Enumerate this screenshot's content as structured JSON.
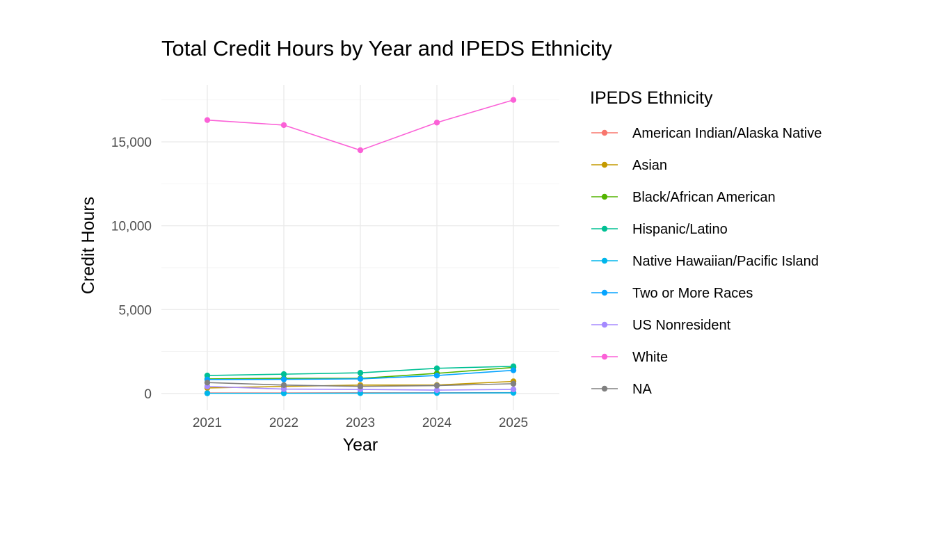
{
  "chart_data": {
    "type": "line",
    "title": "Total Credit Hours by Year and IPEDS Ethnicity",
    "xlabel": "Year",
    "ylabel": "Credit Hours",
    "x": [
      2021,
      2022,
      2023,
      2024,
      2025
    ],
    "x_tick_labels": [
      "2021",
      "2022",
      "2023",
      "2024",
      "2025"
    ],
    "y_ticks": [
      0,
      5000,
      10000,
      15000
    ],
    "y_tick_labels": [
      "0",
      "5,000",
      "10,000",
      "15,000"
    ],
    "ylim": [
      -1000,
      18400
    ],
    "xlim": [
      2020.4,
      2025.6
    ],
    "grid": true,
    "legend_title": "IPEDS Ethnicity",
    "legend_position": "right",
    "series": [
      {
        "name": "American Indian/Alaska Native",
        "color": "#F8766D",
        "values": [
          30,
          30,
          40,
          40,
          50
        ]
      },
      {
        "name": "Asian",
        "color": "#C49A00",
        "values": [
          330,
          420,
          500,
          500,
          720
        ]
      },
      {
        "name": "Black/African American",
        "color": "#53B400",
        "values": [
          870,
          900,
          900,
          1200,
          1550
        ]
      },
      {
        "name": "Hispanic/Latino",
        "color": "#00C094",
        "values": [
          1070,
          1150,
          1230,
          1500,
          1620
        ]
      },
      {
        "name": "Native Hawaiian/Pacific Island",
        "color": "#00B6EB",
        "values": [
          10,
          10,
          20,
          30,
          40
        ]
      },
      {
        "name": "Two or More Races",
        "color": "#06A4FF",
        "values": [
          830,
          840,
          870,
          1070,
          1380
        ]
      },
      {
        "name": "US Nonresident",
        "color": "#A58AFF",
        "values": [
          420,
          260,
          240,
          200,
          240
        ]
      },
      {
        "name": "White",
        "color": "#FB61D7",
        "values": [
          16300,
          16000,
          14500,
          16150,
          17500
        ]
      },
      {
        "name": "NA",
        "color": "#808080",
        "values": [
          650,
          500,
          420,
          470,
          580
        ]
      }
    ]
  }
}
